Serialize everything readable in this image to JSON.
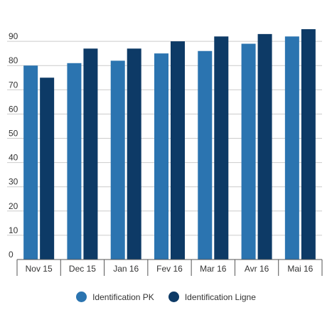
{
  "chart_data": {
    "type": "bar",
    "categories": [
      "Nov 15",
      "Dec 15",
      "Jan 16",
      "Fev 16",
      "Mar 16",
      "Avr 16",
      "Mai 16"
    ],
    "series": [
      {
        "name": "Identification PK",
        "color": "#2b74b0",
        "values": [
          80,
          81,
          82,
          85,
          86,
          89,
          92
        ]
      },
      {
        "name": "Identification Ligne",
        "color": "#0d3a66",
        "values": [
          75,
          87,
          87,
          90,
          92,
          93,
          95
        ]
      }
    ],
    "yticks": [
      0,
      10,
      20,
      30,
      40,
      50,
      60,
      70,
      80,
      90
    ],
    "ylim": [
      0,
      100
    ],
    "grid": true,
    "legend_position": "bottom"
  }
}
